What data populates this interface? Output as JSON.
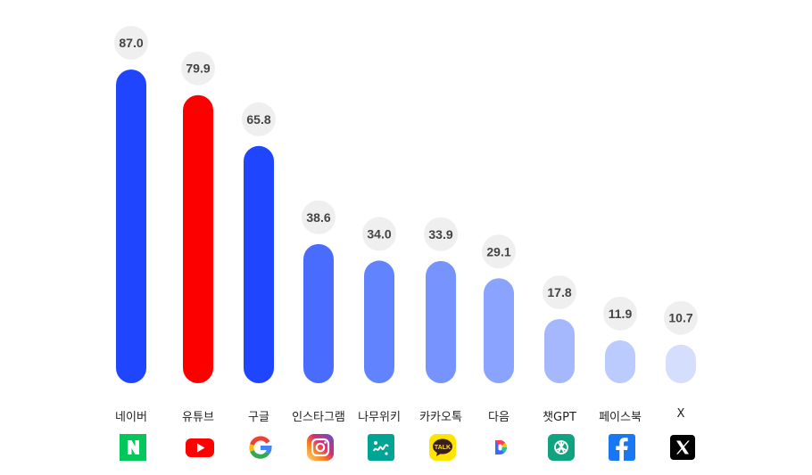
{
  "chart_data": {
    "type": "bar",
    "title": "",
    "xlabel": "",
    "ylabel": "",
    "ylim": [
      0,
      87
    ],
    "grid": false,
    "legend": "none",
    "categories": [
      "네이버",
      "유튜브",
      "구글",
      "인스타그램",
      "나무위키",
      "카카오톡",
      "다음",
      "챗GPT",
      "페이스북",
      "X"
    ],
    "values": [
      87.0,
      79.9,
      65.8,
      38.6,
      34.0,
      33.9,
      29.1,
      17.8,
      11.9,
      10.7
    ],
    "value_labels": [
      "87.0",
      "79.9",
      "65.8",
      "38.6",
      "34.0",
      "33.9",
      "29.1",
      "17.8",
      "11.9",
      "10.7"
    ],
    "bar_colors": [
      "#1f46fe",
      "#fc0000",
      "#1f46fe",
      "#4a6cfe",
      "#6283fe",
      "#7794fe",
      "#8aa3fe",
      "#a5b8fe",
      "#bccbfe",
      "#d6defe"
    ],
    "icons": [
      "naver-icon",
      "youtube-icon",
      "google-icon",
      "instagram-icon",
      "namuwiki-icon",
      "kakaotalk-icon",
      "daum-icon",
      "chatgpt-icon",
      "facebook-icon",
      "x-icon"
    ],
    "colors": {
      "label_bubble": "#efefef",
      "value_text": "#444444"
    }
  }
}
